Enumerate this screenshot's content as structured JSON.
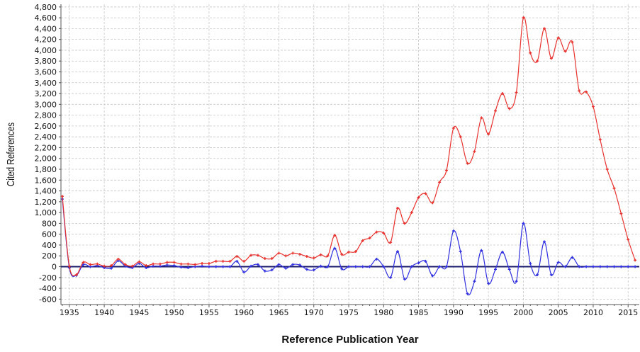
{
  "chart_data": {
    "type": "line",
    "xlabel": "Reference Publication Year",
    "ylabel": "Cited References",
    "xlim": [
      1933.8,
      2016.6
    ],
    "ylim": [
      -700,
      4850
    ],
    "xticks": [
      1935,
      1940,
      1945,
      1950,
      1955,
      1960,
      1965,
      1970,
      1975,
      1980,
      1985,
      1990,
      1995,
      2000,
      2005,
      2010,
      2015
    ],
    "yticks": [
      -600,
      -400,
      -200,
      0,
      200,
      400,
      600,
      800,
      1000,
      1200,
      1400,
      1600,
      1800,
      2000,
      2200,
      2400,
      2600,
      2800,
      3000,
      3200,
      3400,
      3600,
      3800,
      4000,
      4200,
      4400,
      4600,
      4800
    ],
    "grid": true,
    "x": [
      1934,
      1935,
      1936,
      1937,
      1938,
      1939,
      1940,
      1941,
      1942,
      1943,
      1944,
      1945,
      1946,
      1947,
      1948,
      1949,
      1950,
      1951,
      1952,
      1953,
      1954,
      1955,
      1956,
      1957,
      1958,
      1959,
      1960,
      1961,
      1962,
      1963,
      1964,
      1965,
      1966,
      1967,
      1968,
      1969,
      1970,
      1971,
      1972,
      1973,
      1974,
      1975,
      1976,
      1977,
      1978,
      1979,
      1980,
      1981,
      1982,
      1983,
      1984,
      1985,
      1986,
      1987,
      1988,
      1989,
      1990,
      1991,
      1992,
      1993,
      1994,
      1995,
      1996,
      1997,
      1998,
      1999,
      2000,
      2001,
      2002,
      2003,
      2004,
      2005,
      2006,
      2007,
      2008,
      2009,
      2010,
      2011,
      2012,
      2013,
      2014,
      2015,
      2016
    ],
    "series": [
      {
        "color": "#e8322e",
        "values": [
          1300,
          10,
          -150,
          80,
          40,
          50,
          10,
          20,
          140,
          40,
          10,
          90,
          20,
          50,
          50,
          80,
          80,
          50,
          50,
          40,
          60,
          60,
          100,
          100,
          100,
          190,
          100,
          210,
          210,
          150,
          150,
          250,
          200,
          250,
          230,
          190,
          160,
          220,
          200,
          580,
          230,
          270,
          280,
          480,
          530,
          640,
          620,
          450,
          1080,
          800,
          1000,
          1280,
          1350,
          1180,
          1560,
          1780,
          2560,
          2400,
          1910,
          2130,
          2750,
          2450,
          2880,
          3200,
          2920,
          3220,
          4600,
          3950,
          3800,
          4400,
          3850,
          4230,
          3980,
          4150,
          3250,
          3230,
          2960,
          2350,
          1800,
          1450,
          980,
          500,
          120
        ]
      },
      {
        "color": "#3030e0",
        "values": [
          1250,
          -20,
          -160,
          40,
          0,
          20,
          -20,
          -30,
          110,
          10,
          -20,
          60,
          -20,
          10,
          10,
          30,
          20,
          -10,
          -20,
          0,
          10,
          0,
          0,
          0,
          0,
          100,
          -100,
          10,
          40,
          -80,
          -60,
          40,
          -30,
          40,
          30,
          -50,
          -60,
          10,
          0,
          340,
          -40,
          0,
          0,
          0,
          0,
          140,
          0,
          -200,
          280,
          -230,
          0,
          70,
          100,
          -170,
          0,
          0,
          660,
          280,
          -500,
          -270,
          300,
          -310,
          -50,
          270,
          -50,
          -270,
          800,
          60,
          -150,
          460,
          -150,
          80,
          0,
          170,
          0,
          0,
          0,
          0,
          0,
          0,
          0,
          0,
          0
        ]
      }
    ]
  }
}
